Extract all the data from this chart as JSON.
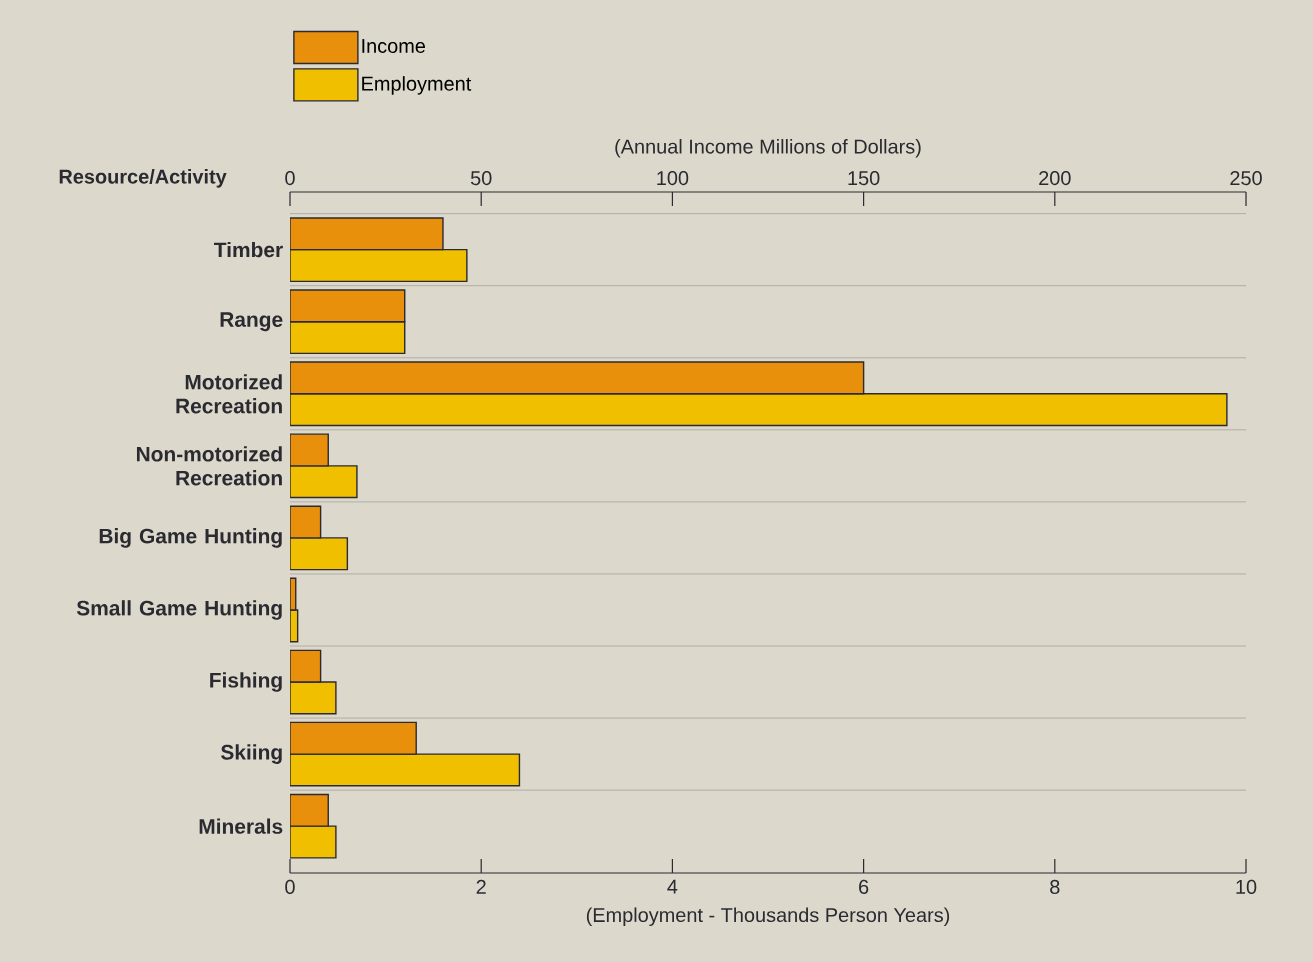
{
  "chart_data": {
    "type": "bar",
    "orientation": "horizontal",
    "ylabel": "Resource/Activity",
    "xlabel": "(Employment - Thousands Person Years)",
    "x2label": "(Annual Income Millions of Dollars)",
    "categories": [
      "Timber",
      "Range",
      "Motorized Recreation",
      "Non-motorized Recreation",
      "Big Game Hunting",
      "Small Game Hunting",
      "Fishing",
      "Skiing",
      "Minerals"
    ],
    "series": [
      {
        "name": "Income",
        "color": "#e8900c",
        "axis": "x2",
        "values": [
          40,
          30,
          150,
          10,
          8,
          1.5,
          8,
          33,
          10
        ]
      },
      {
        "name": "Employment",
        "color": "#f0c000",
        "values": [
          1.85,
          1.2,
          9.8,
          0.7,
          0.6,
          0.08,
          0.48,
          2.4,
          0.48
        ]
      }
    ],
    "xlim": [
      0,
      10
    ],
    "xticks": [
      0,
      2,
      4,
      6,
      8,
      10
    ],
    "x2lim": [
      0,
      250
    ],
    "x2ticks": [
      0,
      50,
      100,
      150,
      200,
      250
    ],
    "grid": "y",
    "legend": "top left"
  }
}
